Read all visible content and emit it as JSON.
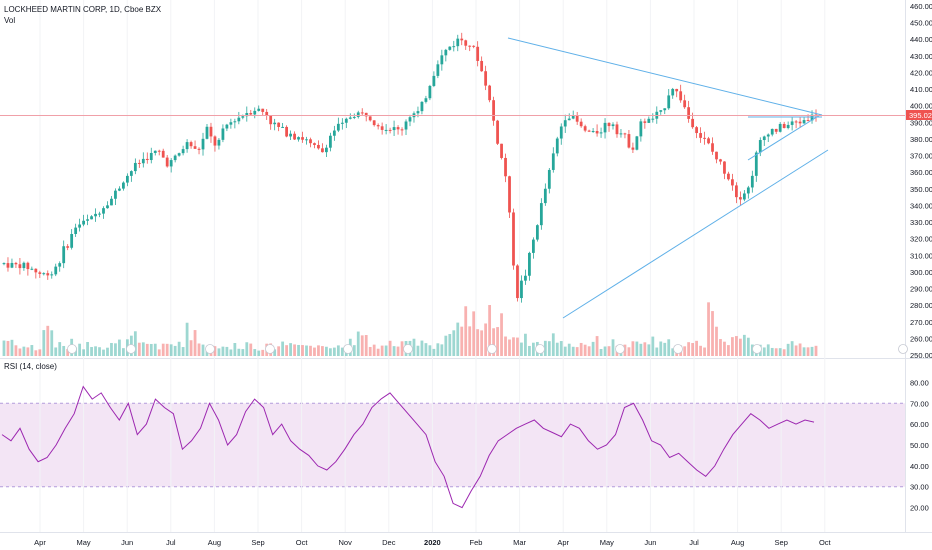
{
  "header": {
    "symbol_title": "LOCKHEED MARTIN CORP, 1D, Cboe BZX",
    "volume_label": "Vol"
  },
  "rsi_panel": {
    "label": "RSI (14, close)"
  },
  "colors": {
    "up": "#26a69a",
    "down": "#ef5350",
    "trendline": "#5fb0e8",
    "hline": "#f0a0a8",
    "rsi_line": "#9c27b0",
    "rsi_band": "#f3e5f5",
    "price_badge": "#ef5350"
  },
  "chart_data": [
    {
      "type": "candlestick",
      "title": "LOCKHEED MARTIN CORP, 1D, Cboe BZX",
      "ylim": [
        250,
        460
      ],
      "y_ticks": [
        "460.00",
        "450.00",
        "440.00",
        "430.00",
        "420.00",
        "410.00",
        "400.00",
        "390.00",
        "380.00",
        "370.00",
        "360.00",
        "350.00",
        "340.00",
        "330.00",
        "320.00",
        "310.00",
        "300.00",
        "290.00",
        "280.00",
        "270.00",
        "260.00",
        "250.00"
      ],
      "x_ticks": [
        "Apr",
        "May",
        "Jun",
        "Jul",
        "Aug",
        "Sep",
        "Oct",
        "Nov",
        "Dec",
        "2020",
        "Feb",
        "Mar",
        "Apr",
        "May",
        "Jun",
        "Jul",
        "Aug",
        "Sep",
        "Oct"
      ],
      "last_price_label": "395.02",
      "last_price": 395.02,
      "price_path": [
        [
          0,
          305
        ],
        [
          5,
          303
        ],
        [
          8,
          298
        ],
        [
          10,
          300
        ],
        [
          12,
          310
        ],
        [
          15,
          328
        ],
        [
          18,
          332
        ],
        [
          20,
          338
        ],
        [
          22,
          343
        ],
        [
          24,
          352
        ],
        [
          26,
          360
        ],
        [
          28,
          366
        ],
        [
          30,
          370
        ],
        [
          32,
          372
        ],
        [
          34,
          365
        ],
        [
          36,
          370
        ],
        [
          38,
          378
        ],
        [
          40,
          372
        ],
        [
          42,
          385
        ],
        [
          44,
          375
        ],
        [
          46,
          388
        ],
        [
          48,
          392
        ],
        [
          50,
          396
        ],
        [
          52,
          398
        ],
        [
          54,
          396
        ],
        [
          56,
          388
        ],
        [
          58,
          385
        ],
        [
          60,
          383
        ],
        [
          62,
          380
        ],
        [
          64,
          375
        ],
        [
          66,
          372
        ],
        [
          68,
          385
        ],
        [
          70,
          388
        ],
        [
          72,
          395
        ],
        [
          74,
          395
        ],
        [
          76,
          394
        ],
        [
          78,
          388
        ],
        [
          80,
          386
        ],
        [
          82,
          385
        ],
        [
          84,
          395
        ],
        [
          86,
          395
        ],
        [
          88,
          412
        ],
        [
          90,
          428
        ],
        [
          92,
          435
        ],
        [
          94,
          440
        ],
        [
          96,
          440
        ],
        [
          98,
          428
        ],
        [
          100,
          410
        ],
        [
          102,
          380
        ],
        [
          104,
          355
        ],
        [
          106,
          285
        ],
        [
          108,
          300
        ],
        [
          110,
          325
        ],
        [
          112,
          350
        ],
        [
          114,
          375
        ],
        [
          116,
          395
        ],
        [
          118,
          392
        ],
        [
          120,
          385
        ],
        [
          122,
          383
        ],
        [
          124,
          388
        ],
        [
          126,
          390
        ],
        [
          128,
          382
        ],
        [
          130,
          375
        ],
        [
          132,
          390
        ],
        [
          134,
          392
        ],
        [
          136,
          395
        ],
        [
          138,
          412
        ],
        [
          140,
          405
        ],
        [
          142,
          390
        ],
        [
          144,
          382
        ],
        [
          146,
          375
        ],
        [
          148,
          365
        ],
        [
          150,
          358
        ],
        [
          152,
          345
        ],
        [
          154,
          350
        ],
        [
          156,
          375
        ],
        [
          158,
          385
        ],
        [
          160,
          386
        ],
        [
          162,
          388
        ],
        [
          164,
          390
        ],
        [
          166,
          392
        ],
        [
          168,
          395
        ]
      ],
      "volume_ylim": [
        0,
        100
      ],
      "volume_sample": [
        18,
        12,
        10,
        8,
        30,
        12,
        10,
        14,
        12,
        15,
        10,
        12,
        14,
        20,
        12,
        14,
        10,
        12,
        16,
        28,
        14,
        10,
        12,
        8,
        12,
        14,
        10,
        10,
        12,
        14,
        18,
        12,
        10,
        12,
        14,
        10,
        20,
        18,
        12,
        10,
        14,
        12,
        16,
        18,
        12,
        14,
        22,
        28,
        40,
        24,
        60,
        35,
        28,
        22,
        18,
        14,
        16,
        20,
        14,
        12,
        14,
        16,
        12,
        14,
        10,
        12,
        14,
        16,
        12,
        14,
        10,
        12,
        14,
        56,
        26,
        20,
        16,
        18,
        14,
        12,
        12,
        10,
        12,
        14,
        10
      ]
    },
    {
      "type": "line",
      "title": "RSI (14, close)",
      "ylim": [
        15,
        85
      ],
      "y_ticks": [
        "80.00",
        "70.00",
        "60.00",
        "50.00",
        "40.00",
        "30.00",
        "20.00"
      ],
      "band": [
        30,
        70
      ],
      "values": [
        55,
        52,
        58,
        48,
        42,
        44,
        50,
        58,
        65,
        78,
        72,
        75,
        68,
        62,
        70,
        55,
        60,
        72,
        68,
        65,
        48,
        52,
        58,
        70,
        62,
        50,
        55,
        66,
        72,
        68,
        55,
        60,
        52,
        48,
        45,
        40,
        38,
        42,
        48,
        55,
        60,
        68,
        72,
        75,
        70,
        65,
        60,
        55,
        42,
        35,
        22,
        20,
        28,
        35,
        45,
        52,
        55,
        58,
        60,
        62,
        58,
        56,
        54,
        60,
        58,
        52,
        48,
        50,
        55,
        68,
        70,
        62,
        52,
        50,
        44,
        46,
        42,
        38,
        35,
        40,
        48,
        55,
        60,
        65,
        62,
        58,
        60,
        62,
        60,
        62,
        61
      ]
    }
  ]
}
